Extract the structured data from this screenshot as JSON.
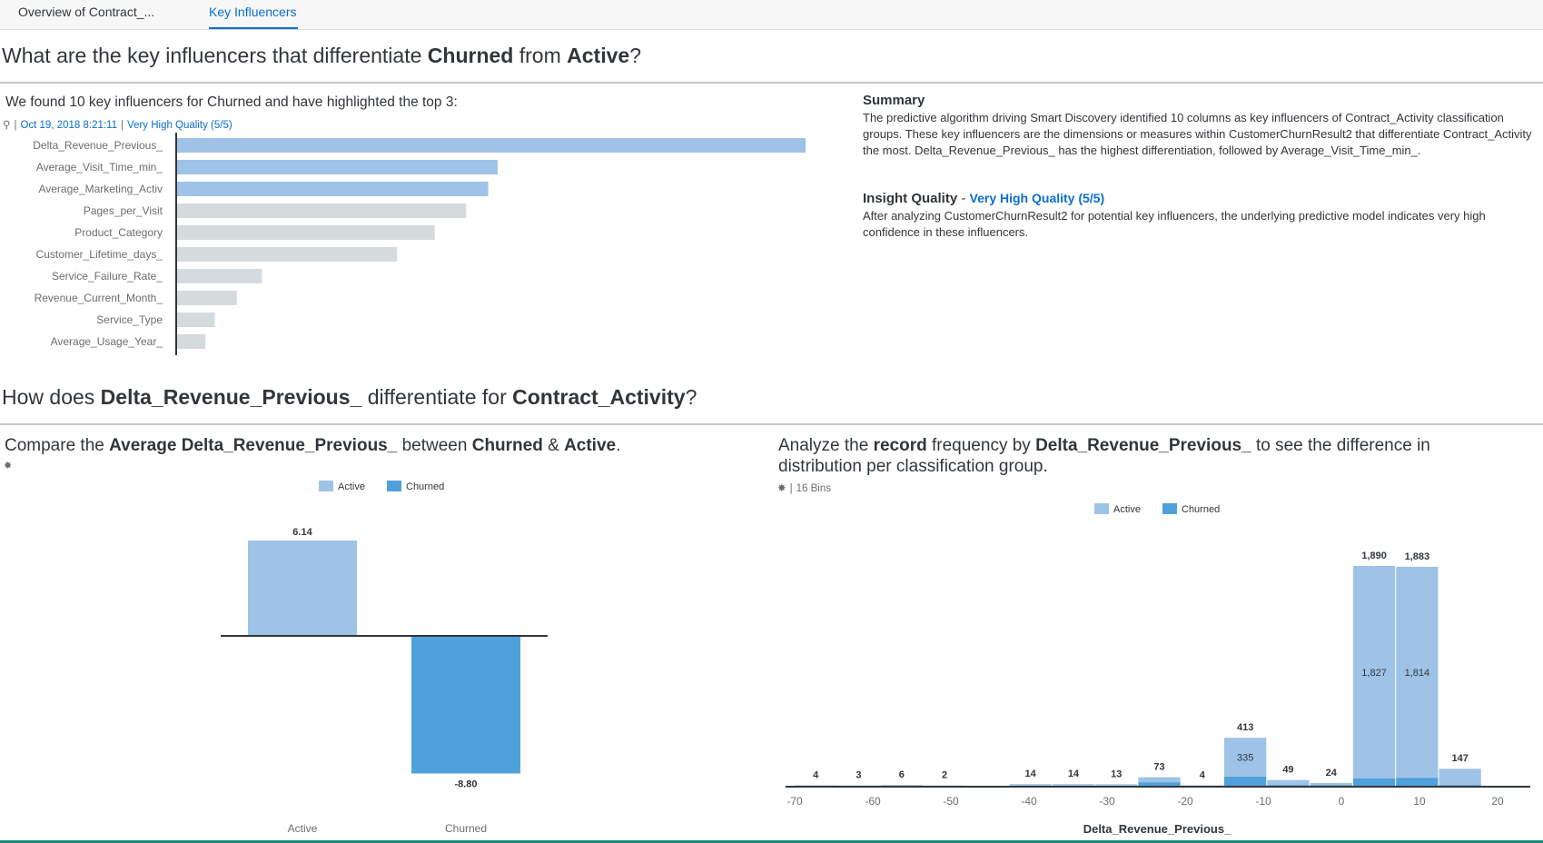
{
  "tabs": [
    {
      "label": "Overview of Contract_..."
    },
    {
      "label": "Key Influencers"
    }
  ],
  "section1": {
    "question_pre": "What are the key influencers that differentiate ",
    "question_b1": "Churned",
    "question_mid": " from ",
    "question_b2": "Active",
    "question_post": "?",
    "found_text": "We found 10 key influencers for Churned and have highlighted the top 3:",
    "date": "Oct 19, 2018 8:21:11",
    "quality": "Very High Quality (5/5)"
  },
  "summary": {
    "title": "Summary",
    "text": "The predictive algorithm driving Smart Discovery identified 10 columns as key influencers of Contract_Activity classification groups. These key influencers are the dimensions or measures within CustomerChurnResult2 that differentiate Contract_Activity the most. Delta_Revenue_Previous_ has the highest differentiation, followed by Average_Visit_Time_min_.",
    "iq_title": "Insight Quality",
    "iq_dash": " - ",
    "iq_value": "Very High Quality (5/5)",
    "iq_text": "After analyzing CustomerChurnResult2 for potential key influencers, the underlying predictive model indicates very high confidence in these influencers."
  },
  "section2": {
    "question_pre": "How does ",
    "question_b1": "Delta_Revenue_Previous_",
    "question_mid": " differentiate for ",
    "question_b2": "Contract_Activity",
    "question_post": "?",
    "compare_pre": "Compare the ",
    "compare_b1": "Average Delta_Revenue_Previous_",
    "compare_mid": " between ",
    "compare_b2": "Churned",
    "compare_amp": " & ",
    "compare_b3": "Active",
    "compare_post": ".",
    "analyze_pre": "Analyze the ",
    "analyze_b1": "record",
    "analyze_mid": " frequency by ",
    "analyze_b2": "Delta_Revenue_Previous_",
    "analyze_post": " to see the difference in",
    "analyze_line2": "distribution per classification group.",
    "bins": "16 Bins"
  },
  "colors": {
    "active": "#9fc3e7",
    "churned": "#4fa1dc",
    "grey": "#d5dadd",
    "link": "#0a6ed1"
  },
  "chart_data": [
    {
      "type": "bar",
      "orientation": "horizontal",
      "categories": [
        "Delta_Revenue_Previous_",
        "Average_Visit_Time_min_",
        "Average_Marketing_Activ",
        "Pages_per_Visit",
        "Product_Category",
        "Customer_Lifetime_days_",
        "Service_Failure_Rate_",
        "Revenue_Current_Month_",
        "Service_Type",
        "Average_Usage_Year_"
      ],
      "values": [
        100,
        51,
        49.5,
        46,
        41,
        35,
        13.5,
        9.5,
        6,
        4.5
      ],
      "highlighted": 3
    },
    {
      "type": "bar",
      "categories": [
        "Active",
        "Churned"
      ],
      "values": [
        6.14,
        -8.8
      ],
      "value_labels": [
        "6.14",
        "-8.80"
      ],
      "legend": [
        "Active",
        "Churned"
      ],
      "ylim": [
        -9.5,
        7
      ]
    },
    {
      "type": "bar",
      "stacked": true,
      "xlabel": "Delta_Revenue_Previous_",
      "xticks": [
        -70,
        -60,
        -50,
        -40,
        -30,
        -20,
        -10,
        0,
        10,
        20
      ],
      "xlim": [
        -71,
        24
      ],
      "legend": [
        "Active",
        "Churned"
      ],
      "bin_width": 5.5,
      "bins": [
        {
          "x": -70,
          "total": 4,
          "total_label": "4",
          "churned": 0
        },
        {
          "x": -64.5,
          "total": 3,
          "total_label": "3",
          "churned": 0
        },
        {
          "x": -59,
          "total": 6,
          "total_label": "6",
          "churned": 0
        },
        {
          "x": -53.5,
          "total": 2,
          "total_label": "2",
          "churned": 0
        },
        {
          "x": -48,
          "total": 0,
          "total_label": "",
          "churned": 0
        },
        {
          "x": -42.5,
          "total": 14,
          "total_label": "14",
          "churned": 0
        },
        {
          "x": -37,
          "total": 14,
          "total_label": "14",
          "churned": 0
        },
        {
          "x": -31.5,
          "total": 13,
          "total_label": "13",
          "churned": 0
        },
        {
          "x": -26,
          "total": 73,
          "total_label": "73",
          "churned": 30
        },
        {
          "x": -20.5,
          "total": 4,
          "total_label": "4",
          "churned": 0
        },
        {
          "x": -15,
          "total": 413,
          "total_label": "413",
          "active_label": "335",
          "churned": 78
        },
        {
          "x": -9.5,
          "total": 49,
          "total_label": "49",
          "churned": 5
        },
        {
          "x": -4,
          "total": 24,
          "total_label": "24",
          "churned": 4
        },
        {
          "x": 1.5,
          "total": 1890,
          "total_label": "1,890",
          "active_label": "1,827",
          "churned": 63
        },
        {
          "x": 7,
          "total": 1883,
          "total_label": "1,883",
          "active_label": "1,814",
          "churned": 69
        },
        {
          "x": 12.5,
          "total": 147,
          "total_label": "147",
          "churned": 5
        }
      ]
    }
  ]
}
